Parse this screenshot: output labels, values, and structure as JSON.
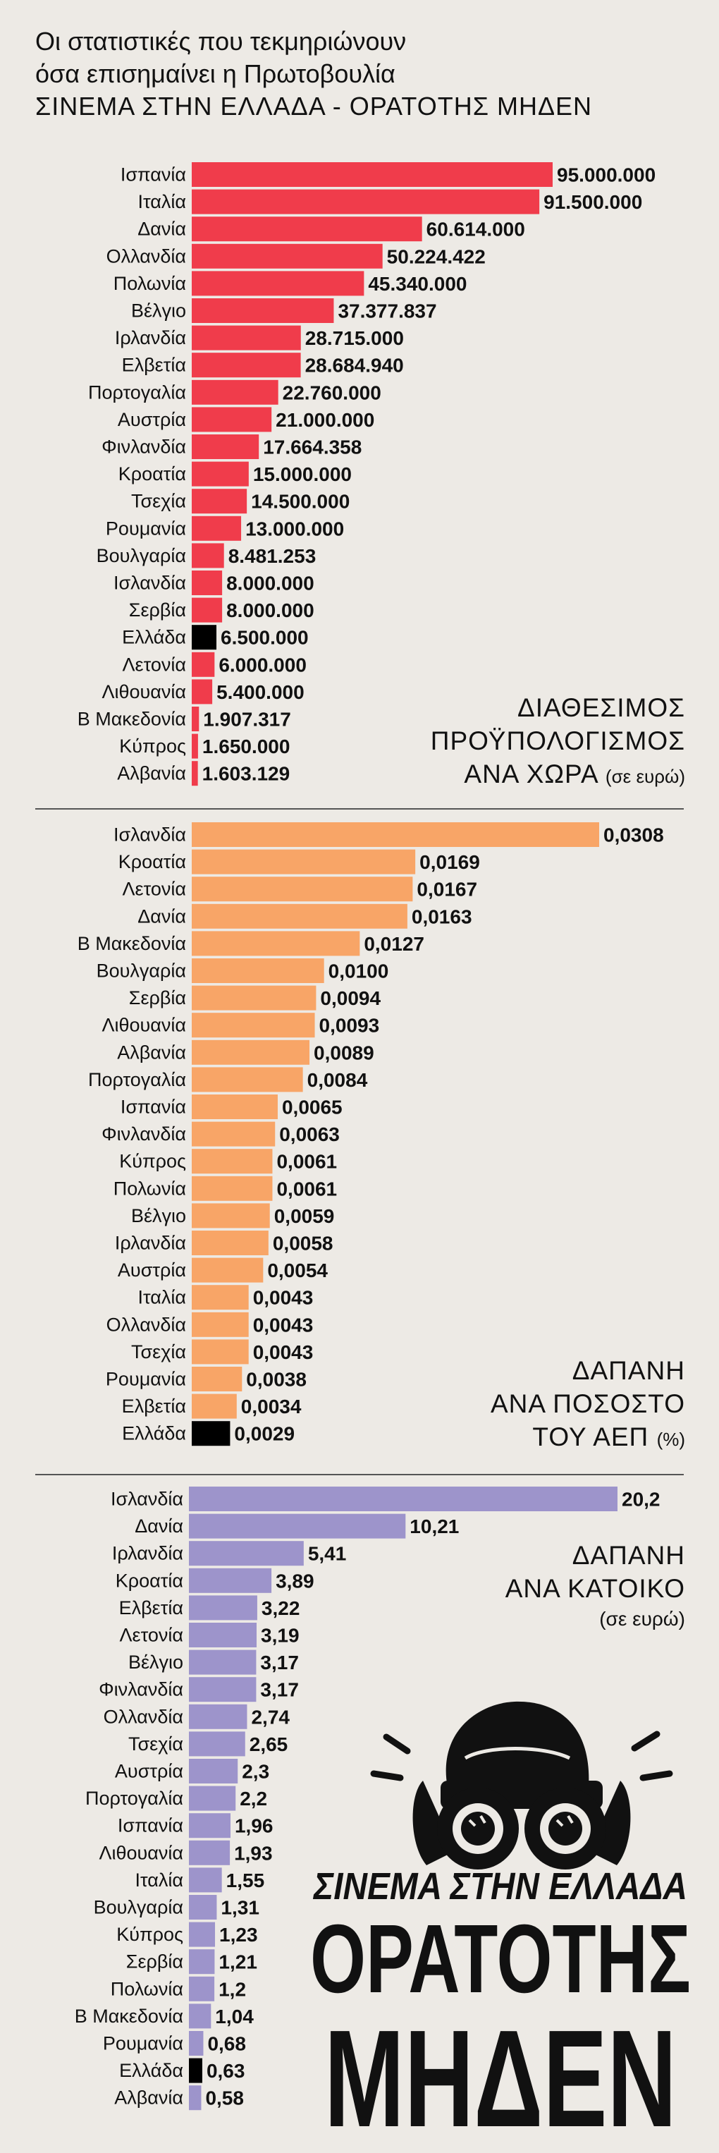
{
  "header": {
    "line1": "Οι στατιστικές που τεκμηριώνουν",
    "line2": "όσα επισημαίνει η Πρωτοβουλία",
    "line3": "ΣΙΝΕΜΑ ΣΤΗΝ ΕΛΛΑΔΑ - ΟΡΑΤΟΤΗΣ ΜΗΔΕΝ"
  },
  "colors": {
    "budget": "#f03c4b",
    "gdp": "#f8a567",
    "capita": "#9d94cb",
    "highlight": "#000000",
    "background": "#edeae5"
  },
  "chart_data": [
    {
      "type": "bar",
      "orientation": "horizontal",
      "title_lines": [
        "ΔΙΑΘΕΣΙΜΟΣ",
        "ΠΡΟΫΠΟΛΟΓΙΣΜΟΣ",
        "ΑΝΑ ΧΩΡΑ"
      ],
      "unit": "(σε ευρώ)",
      "categories": [
        "Ισπανία",
        "Ιταλία",
        "Δανία",
        "Ολλανδία",
        "Πολωνία",
        "Βέλγιο",
        "Ιρλανδία",
        "Ελβετία",
        "Πορτογαλία",
        "Αυστρία",
        "Φινλανδία",
        "Κροατία",
        "Τσεχία",
        "Ρουμανία",
        "Βουλγαρία",
        "Ισλανδία",
        "Σερβία",
        "Ελλάδα",
        "Λετονία",
        "Λιθουανία",
        "Β Μακεδονία",
        "Κύπρος",
        "Αλβανία"
      ],
      "values": [
        95000000,
        91500000,
        60614000,
        50224422,
        45340000,
        37377837,
        28715000,
        28684940,
        22760000,
        21000000,
        17664358,
        15000000,
        14500000,
        13000000,
        8481253,
        8000000,
        8000000,
        6500000,
        6000000,
        5400000,
        1907317,
        1650000,
        1603129
      ],
      "labels": [
        "95.000.000",
        "91.500.000",
        "60.614.000",
        "50.224.422",
        "45.340.000",
        "37.377.837",
        "28.715.000",
        "28.684.940",
        "22.760.000",
        "21.000.000",
        "17.664.358",
        "15.000.000",
        "14.500.000",
        "13.000.000",
        "8.481.253",
        "8.000.000",
        "8.000.000",
        "6.500.000",
        "6.000.000",
        "5.400.000",
        "1.907.317",
        "1.650.000",
        "1.603.129"
      ],
      "highlight": "Ελλάδα"
    },
    {
      "type": "bar",
      "orientation": "horizontal",
      "title_lines": [
        "ΔΑΠΑΝΗ",
        "ΑΝΑ ΠΟΣΟΣΤΟ",
        "ΤΟΥ ΑΕΠ"
      ],
      "unit": "(%)",
      "categories": [
        "Ισλανδία",
        "Κροατία",
        "Λετονία",
        "Δανία",
        "Β Μακεδονία",
        "Βουλγαρία",
        "Σερβία",
        "Λιθουανία",
        "Αλβανία",
        "Πορτογαλία",
        "Ισπανία",
        "Φινλανδία",
        "Κύπρος",
        "Πολωνία",
        "Βέλγιο",
        "Ιρλανδία",
        "Αυστρία",
        "Ιταλία",
        "Ολλανδία",
        "Τσεχία",
        "Ρουμανία",
        "Ελβετία",
        "Ελλάδα"
      ],
      "values": [
        0.0308,
        0.0169,
        0.0167,
        0.0163,
        0.0127,
        0.01,
        0.0094,
        0.0093,
        0.0089,
        0.0084,
        0.0065,
        0.0063,
        0.0061,
        0.0061,
        0.0059,
        0.0058,
        0.0054,
        0.0043,
        0.0043,
        0.0043,
        0.0038,
        0.0034,
        0.0029
      ],
      "labels": [
        "0,0308",
        "0,0169",
        "0,0167",
        "0,0163",
        "0,0127",
        "0,0100",
        "0,0094",
        "0,0093",
        "0,0089",
        "0,0084",
        "0,0065",
        "0,0063",
        "0,0061",
        "0,0061",
        "0,0059",
        "0,0058",
        "0,0054",
        "0,0043",
        "0,0043",
        "0,0043",
        "0,0038",
        "0,0034",
        "0,0029"
      ],
      "highlight": "Ελλάδα"
    },
    {
      "type": "bar",
      "orientation": "horizontal",
      "title_lines": [
        "ΔΑΠΑΝΗ",
        "ΑΝΑ ΚΑΤΟΙΚΟ"
      ],
      "unit": "(σε ευρώ)",
      "categories": [
        "Ισλανδία",
        "Δανία",
        "Ιρλανδία",
        "Κροατία",
        "Ελβετία",
        "Λετονία",
        "Βέλγιο",
        "Φινλανδία",
        "Ολλανδία",
        "Τσεχία",
        "Αυστρία",
        "Πορτογαλία",
        "Ισπανία",
        "Λιθουανία",
        "Ιταλία",
        "Βουλγαρία",
        "Κύπρος",
        "Σερβία",
        "Πολωνία",
        "Β Μακεδονία",
        "Ρουμανία",
        "Ελλάδα",
        "Αλβανία"
      ],
      "values": [
        20.2,
        10.21,
        5.41,
        3.89,
        3.22,
        3.19,
        3.17,
        3.17,
        2.74,
        2.65,
        2.3,
        2.2,
        1.96,
        1.93,
        1.55,
        1.31,
        1.23,
        1.21,
        1.2,
        1.04,
        0.68,
        0.63,
        0.58
      ],
      "labels": [
        "20,2",
        "10,21",
        "5,41",
        "3,89",
        "3,22",
        "3,19",
        "3,17",
        "3,17",
        "2,74",
        "2,65",
        "2,3",
        "2,2",
        "1,96",
        "1,93",
        "1,55",
        "1,31",
        "1,23",
        "1,21",
        "1,2",
        "1,04",
        "0,68",
        "0,63",
        "0,58"
      ],
      "highlight": "Ελλάδα"
    }
  ],
  "logo": {
    "line1": "ΣΙΝΕΜΑ ΣΤΗΝ ΕΛΛΑΔΑ",
    "line2": "ΟΡΑΤΟΤΗΣ",
    "line3": "ΜΗΔΕΝ"
  }
}
